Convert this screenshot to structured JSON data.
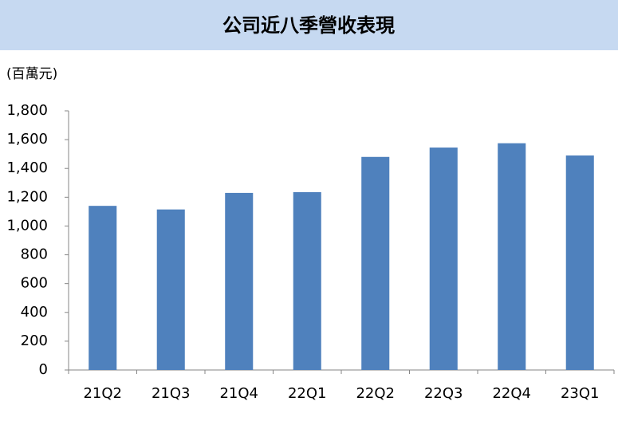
{
  "chart_data": {
    "type": "bar",
    "title": "公司近八季營收表現",
    "y_label": "(百萬元)",
    "categories": [
      "21Q2",
      "21Q3",
      "21Q4",
      "22Q1",
      "22Q2",
      "22Q3",
      "22Q4",
      "23Q1"
    ],
    "values": [
      1140,
      1115,
      1230,
      1235,
      1480,
      1545,
      1575,
      1490
    ],
    "color": "#4f81bd",
    "ylim": [
      0,
      1800
    ],
    "yticks": [
      0,
      200,
      400,
      600,
      800,
      {
        "value": 1000,
        "label": "1,000"
      },
      {
        "value": 1200,
        "label": "1,200"
      },
      {
        "value": 1400,
        "label": "1,400"
      },
      {
        "value": 1600,
        "label": "1,600"
      },
      {
        "value": 1800,
        "label": "1,800"
      }
    ],
    "grid": false
  }
}
